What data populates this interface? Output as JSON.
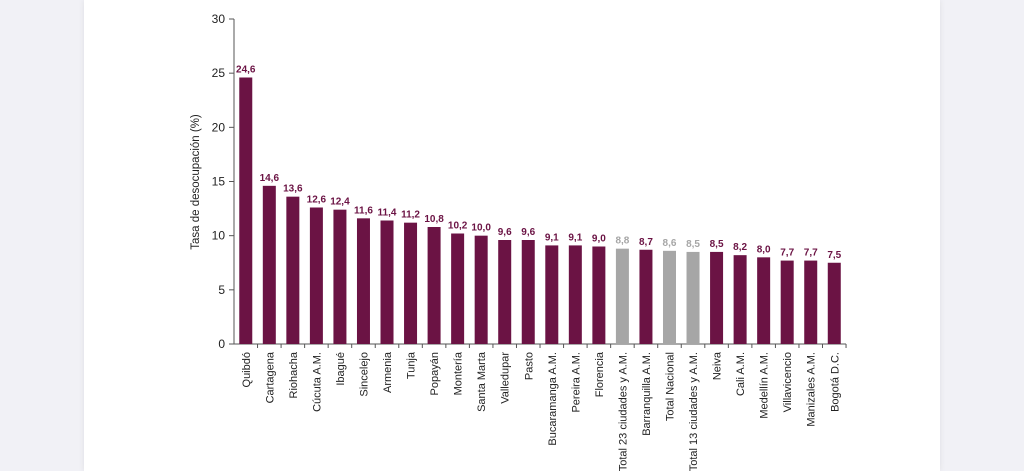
{
  "colors": {
    "bar": "#6b1344",
    "highlight": "#a6a6a6",
    "axis": "#555555"
  },
  "chart_data": {
    "type": "bar",
    "title": "",
    "xlabel": "",
    "ylabel": "Tasa de desocupación (%)",
    "ylim": [
      0,
      30
    ],
    "yticks": [
      0,
      5,
      10,
      15,
      20,
      25,
      30
    ],
    "grid": false,
    "categories": [
      "Quibdó",
      "Cartagena",
      "Riohacha",
      "Cúcuta A.M.",
      "Ibagué",
      "Sincelejo",
      "Armenia",
      "Tunja",
      "Popayán",
      "Montería",
      "Santa Marta",
      "Valledupar",
      "Pasto",
      "Bucaramanga A.M.",
      "Pereira A.M.",
      "Florencia",
      "Total 23 ciudades y A.M.",
      "Barranquilla A.M.",
      "Total Nacional",
      "Total 13 ciudades y A.M.",
      "Neiva",
      "Cali A.M.",
      "Medellín A.M.",
      "Villavicencio",
      "Manizales A.M.",
      "Bogotá D.C."
    ],
    "values": [
      24.6,
      14.6,
      13.6,
      12.6,
      12.4,
      11.6,
      11.4,
      11.2,
      10.8,
      10.2,
      10.0,
      9.6,
      9.6,
      9.1,
      9.1,
      9.0,
      8.8,
      8.7,
      8.6,
      8.5,
      8.5,
      8.2,
      8.0,
      7.7,
      7.7,
      7.5
    ],
    "value_labels": [
      "24,6",
      "14,6",
      "13,6",
      "12,6",
      "12,4",
      "11,6",
      "11,4",
      "11,2",
      "10,8",
      "10,2",
      "10,0",
      "9,6",
      "9,6",
      "9,1",
      "9,1",
      "9,0",
      "8,8",
      "8,7",
      "8,6",
      "8,5",
      "8,5",
      "8,2",
      "8,0",
      "7,7",
      "7,7",
      "7,5"
    ],
    "highlighted": [
      "Total 23 ciudades y A.M.",
      "Total Nacional",
      "Total 13 ciudades y A.M."
    ]
  }
}
